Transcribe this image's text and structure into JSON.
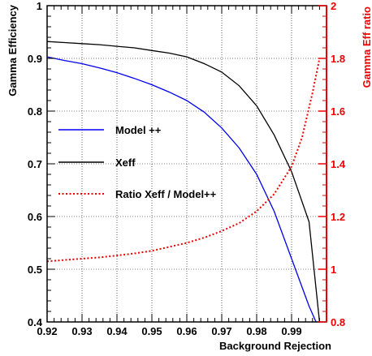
{
  "chart_data": {
    "type": "line",
    "xlabel": "Background Rejection",
    "ylabel": "Gamma Efficiency",
    "y2label": "Gamma Eff ratio",
    "xlim": [
      0.92,
      1.0
    ],
    "ylim": [
      0.4,
      1.0
    ],
    "y2lim": [
      0.8,
      2.0
    ],
    "grid": true,
    "legend_position": "left-middle",
    "x_ticks": [
      0.92,
      0.93,
      0.94,
      0.95,
      0.96,
      0.97,
      0.98,
      0.99
    ],
    "y_ticks": [
      0.4,
      0.5,
      0.6,
      0.7,
      0.8,
      0.9,
      1
    ],
    "y2_ticks": [
      0.8,
      1,
      1.2,
      1.4,
      1.6,
      1.8,
      2
    ],
    "x_tick_labels": [
      "0.92",
      "0.93",
      "0.94",
      "0.95",
      "0.96",
      "0.97",
      "0.98",
      "0.99"
    ],
    "y_tick_labels": [
      "0.4",
      "0.5",
      "0.6",
      "0.7",
      "0.8",
      "0.9",
      "1"
    ],
    "y2_tick_labels": [
      "0.8",
      "1",
      "1.2",
      "1.4",
      "1.6",
      "1.8",
      "2"
    ],
    "colors": {
      "model": "#0000ee",
      "xeff": "#000000",
      "ratio": "#ee0000"
    },
    "series": [
      {
        "name": "Model ++",
        "axis": "left",
        "style": "solid",
        "x": [
          0.92,
          0.925,
          0.93,
          0.935,
          0.94,
          0.945,
          0.95,
          0.955,
          0.96,
          0.965,
          0.97,
          0.975,
          0.98,
          0.985,
          0.99,
          0.995,
          0.997
        ],
        "y": [
          0.903,
          0.896,
          0.89,
          0.882,
          0.873,
          0.862,
          0.85,
          0.836,
          0.82,
          0.798,
          0.768,
          0.73,
          0.68,
          0.61,
          0.52,
          0.43,
          0.4
        ]
      },
      {
        "name": "Xeff",
        "axis": "left",
        "style": "solid",
        "x": [
          0.92,
          0.925,
          0.93,
          0.935,
          0.94,
          0.945,
          0.95,
          0.955,
          0.96,
          0.965,
          0.97,
          0.975,
          0.98,
          0.985,
          0.99,
          0.995,
          0.998
        ],
        "y": [
          0.932,
          0.93,
          0.928,
          0.926,
          0.923,
          0.92,
          0.915,
          0.91,
          0.903,
          0.89,
          0.874,
          0.848,
          0.81,
          0.755,
          0.685,
          0.59,
          0.4
        ]
      },
      {
        "name": "Ratio Xeff / Model++",
        "axis": "right",
        "style": "dotted",
        "x": [
          0.92,
          0.925,
          0.93,
          0.935,
          0.94,
          0.945,
          0.95,
          0.955,
          0.96,
          0.965,
          0.97,
          0.975,
          0.98,
          0.985,
          0.99,
          0.993,
          0.996,
          0.998
        ],
        "y": [
          1.03,
          1.035,
          1.04,
          1.045,
          1.052,
          1.06,
          1.07,
          1.085,
          1.1,
          1.12,
          1.145,
          1.175,
          1.22,
          1.285,
          1.39,
          1.5,
          1.67,
          1.8
        ]
      }
    ]
  }
}
